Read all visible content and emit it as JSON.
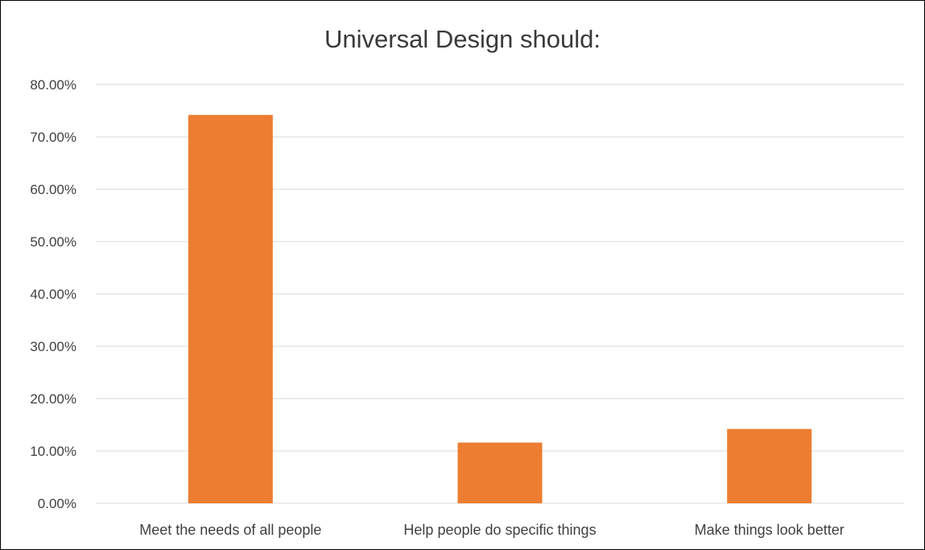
{
  "chart_data": {
    "type": "bar",
    "title": "Universal Design should:",
    "categories": [
      "Meet the needs of all people",
      "Help people do specific things",
      "Make things look better"
    ],
    "values": [
      74.2,
      11.6,
      14.2
    ],
    "value_unit": "%",
    "ylim": [
      0,
      80
    ],
    "yticks": [
      "0.00%",
      "10.00%",
      "20.00%",
      "30.00%",
      "40.00%",
      "50.00%",
      "60.00%",
      "70.00%",
      "80.00%"
    ],
    "xlabel": "",
    "ylabel": "",
    "grid": true,
    "legend": "none",
    "bar_color": "#ED7D31",
    "grid_color": "#D9D9D9"
  }
}
